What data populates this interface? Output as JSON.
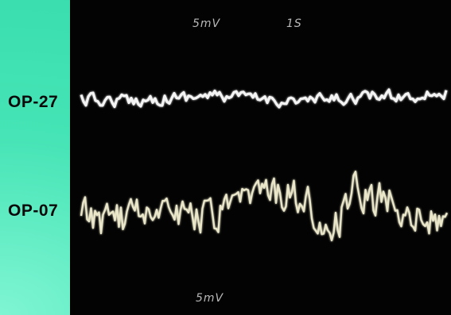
{
  "scope": {
    "top_volt_label": "5mV",
    "time_label": "1S",
    "bottom_volt_label": "5mV"
  },
  "channels": [
    {
      "label": "OP-27",
      "trace_color": "#f4f4f4"
    },
    {
      "label": "OP-07",
      "trace_color": "#e9e6c9"
    }
  ],
  "colors": {
    "background": "#3fe0b0",
    "screen": "#030303"
  }
}
